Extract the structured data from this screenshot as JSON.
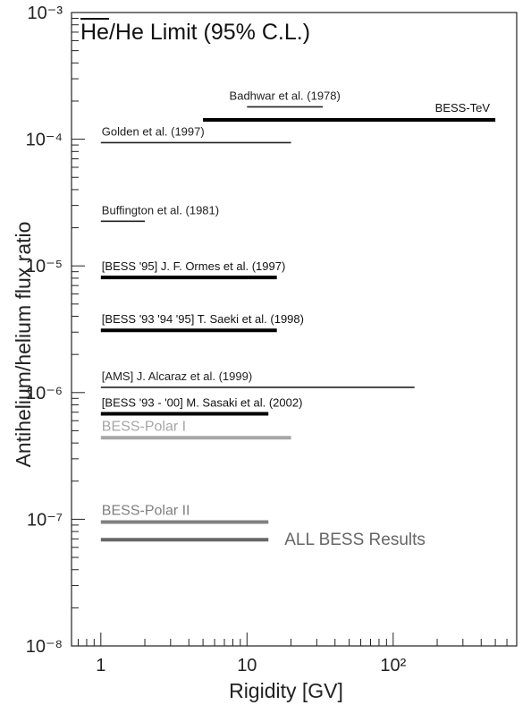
{
  "chart_data": {
    "type": "line",
    "title_overlined": "He",
    "title_rest": "/He Limit (95% C.L.)",
    "xlabel": "Rigidity [GV]",
    "ylabel": "Antihelium/helium flux ratio",
    "xscale": "log",
    "yscale": "log",
    "xlim": [
      0.63,
      700
    ],
    "ylim": [
      1e-08,
      0.001
    ],
    "x_tick_labels": [
      "1",
      "10",
      "10²"
    ],
    "x_tick_values": [
      1,
      10,
      100
    ],
    "y_tick_labels": [
      "10⁻⁸",
      "10⁻⁷",
      "10⁻⁶",
      "10⁻⁵",
      "10⁻⁴",
      "10⁻³"
    ],
    "y_tick_values": [
      1e-08,
      1e-07,
      1e-06,
      1e-05,
      0.0001,
      0.001
    ],
    "series": [
      {
        "name": "Badhwar et al. (1978)",
        "x": [
          10,
          33
        ],
        "y": 0.00018,
        "color": "#222222",
        "weight": "thin",
        "label_anchor": "middle",
        "label_side": "above"
      },
      {
        "name": "BESS-TeV",
        "x": [
          5,
          500
        ],
        "y": 0.000142,
        "color": "#000000",
        "weight": "thick",
        "label_anchor": "end",
        "label_side": "above"
      },
      {
        "name": "Golden et al. (1997)",
        "x": [
          1,
          20
        ],
        "y": 9.4e-05,
        "color": "#222222",
        "weight": "thin",
        "label_anchor": "start",
        "label_side": "above"
      },
      {
        "name": "Buffington et al. (1981)",
        "x": [
          1,
          2
        ],
        "y": 2.25e-05,
        "color": "#222222",
        "weight": "thin",
        "label_anchor": "start",
        "label_side": "above"
      },
      {
        "name": "[BESS '95] J. F. Ormes et al. (1997)",
        "x": [
          1,
          16
        ],
        "y": 8.1e-06,
        "color": "#000000",
        "weight": "thick",
        "label_anchor": "start",
        "label_side": "above"
      },
      {
        "name": "[BESS '93 '94 '95] T. Saeki et al. (1998)",
        "x": [
          1,
          16
        ],
        "y": 3.1e-06,
        "color": "#000000",
        "weight": "thick",
        "label_anchor": "start",
        "label_side": "above"
      },
      {
        "name": "[AMS] J. Alcaraz et al. (1999)",
        "x": [
          1,
          140
        ],
        "y": 1.1e-06,
        "color": "#222222",
        "weight": "thin",
        "label_anchor": "start",
        "label_side": "above"
      },
      {
        "name": "[BESS '93 - '00] M. Sasaki et al. (2002)",
        "x": [
          1,
          14
        ],
        "y": 6.8e-07,
        "color": "#000000",
        "weight": "thick",
        "label_anchor": "start",
        "label_side": "above"
      },
      {
        "name": "BESS-Polar I",
        "x": [
          1,
          20
        ],
        "y": 4.4e-07,
        "color": "#a6a6a6",
        "weight": "thick",
        "label_anchor": "start",
        "label_side": "above",
        "label_size": "large"
      },
      {
        "name": "BESS-Polar II",
        "x": [
          1,
          14
        ],
        "y": 9.5e-08,
        "color": "#808080",
        "weight": "thick",
        "label_anchor": "start",
        "label_side": "above",
        "label_size": "large"
      },
      {
        "name": "ALL BESS Results",
        "x": [
          1,
          14
        ],
        "y": 6.9e-08,
        "color": "#666666",
        "weight": "thick",
        "label_anchor": "right-of-line",
        "label_side": "right",
        "label_size": "xlarge"
      }
    ],
    "grid": false,
    "legend": "inline labels"
  }
}
